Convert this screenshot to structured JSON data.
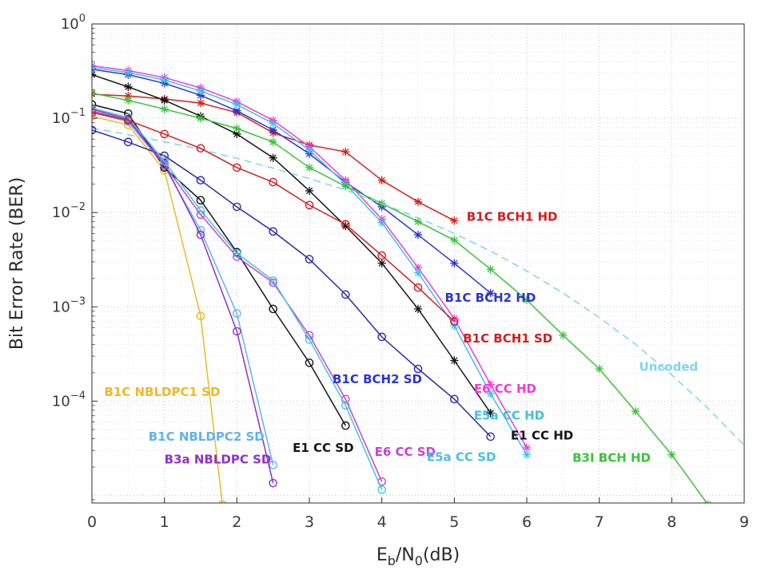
{
  "figure": {
    "background": "#ffffff",
    "axis_color": "#2f2f2f"
  },
  "chart_data": {
    "type": "line",
    "title": "",
    "ylabel": "Bit Error Rate (BER)",
    "xlabel_parts": [
      {
        "text": "E",
        "sub": false
      },
      {
        "text": "b",
        "sub": true
      },
      {
        "text": "/N",
        "sub": false
      },
      {
        "text": "0",
        "sub": true
      },
      {
        "text": "(dB)",
        "sub": false
      }
    ],
    "xlim": [
      0,
      9
    ],
    "x_ticks": [
      0,
      1,
      2,
      3,
      4,
      5,
      6,
      7,
      8,
      9
    ],
    "y_scale": "log",
    "ylog_top": 0,
    "ylog_bottom": -5.08,
    "y_tick_base": "10",
    "y_ticks": [
      {
        "exp": 0,
        "label": "0"
      },
      {
        "exp": -1,
        "label": "−1"
      },
      {
        "exp": -2,
        "label": "−2"
      },
      {
        "exp": -3,
        "label": "−3"
      },
      {
        "exp": -4,
        "label": "−4"
      }
    ],
    "grid": {
      "major": true,
      "minor": true,
      "style": "dotted"
    },
    "legend": "none (inline text annotations)",
    "series": [
      {
        "id": "b1c-bch1-hd",
        "name": "B1C BCH1 HD",
        "color": "#d21f1f",
        "marker": "asterisk",
        "dash": false,
        "x": [
          0,
          0.5,
          1,
          1.5,
          2,
          2.5,
          3,
          3.5,
          4,
          4.5,
          5
        ],
        "y": [
          0.18,
          0.172,
          0.16,
          0.145,
          0.115,
          0.07,
          0.052,
          0.044,
          0.022,
          0.013,
          0.0082
        ]
      },
      {
        "id": "b1c-bch2-hd",
        "name": "B1C BCH2 HD",
        "color": "#2b35d0",
        "marker": "asterisk",
        "dash": false,
        "x": [
          0,
          0.5,
          1,
          1.5,
          2,
          2.5,
          3,
          3.5,
          4,
          4.5,
          5,
          5.5
        ],
        "y": [
          0.33,
          0.29,
          0.235,
          0.175,
          0.12,
          0.075,
          0.042,
          0.021,
          0.0115,
          0.0058,
          0.0029,
          0.0014
        ]
      },
      {
        "id": "e6-cc-hd",
        "name": "E6 CC HD",
        "color": "#ef3cd8",
        "marker": "asterisk",
        "dash": false,
        "x": [
          0,
          0.5,
          1,
          1.5,
          2,
          2.5,
          3,
          3.5,
          4,
          4.5,
          5,
          5.5,
          6
        ],
        "y": [
          0.36,
          0.32,
          0.27,
          0.21,
          0.15,
          0.095,
          0.05,
          0.022,
          0.0085,
          0.0026,
          0.00075,
          0.00015,
          3.2e-05
        ]
      },
      {
        "id": "e5a-cc-hd",
        "name": "E5a CC HD",
        "color": "#3fc1e3",
        "marker": "asterisk",
        "dash": false,
        "x": [
          0,
          0.5,
          1,
          1.5,
          2,
          2.5,
          3,
          3.5,
          4,
          4.5,
          5,
          5.5,
          6
        ],
        "y": [
          0.345,
          0.305,
          0.255,
          0.195,
          0.14,
          0.088,
          0.046,
          0.02,
          0.0078,
          0.0023,
          0.00063,
          0.00012,
          2.7e-05
        ]
      },
      {
        "id": "e1-cc-hd",
        "name": "E1 CC HD",
        "color": "#141414",
        "marker": "asterisk",
        "dash": false,
        "x": [
          0,
          0.5,
          1,
          1.5,
          2,
          2.5,
          3,
          3.5,
          4,
          4.5,
          5,
          5.5
        ],
        "y": [
          0.29,
          0.215,
          0.155,
          0.105,
          0.068,
          0.038,
          0.017,
          0.0072,
          0.0029,
          0.00095,
          0.00027,
          7.5e-05
        ]
      },
      {
        "id": "b3i-bch-hd",
        "name": "B3I BCH HD",
        "color": "#3cc23c",
        "marker": "asterisk",
        "dash": false,
        "x": [
          0,
          0.5,
          1,
          1.5,
          2,
          2.5,
          3,
          3.5,
          4,
          4.5,
          5,
          5.5,
          6,
          6.5,
          7,
          7.5,
          8,
          8.5
        ],
        "y": [
          0.185,
          0.155,
          0.125,
          0.1,
          0.078,
          0.056,
          0.03,
          0.019,
          0.0125,
          0.008,
          0.0051,
          0.0025,
          0.00118,
          0.0005,
          0.00022,
          7.8e-05,
          2.7e-05,
          8e-06
        ]
      },
      {
        "id": "uncoded",
        "name": "Uncoded",
        "color": "#7fd4f2",
        "marker": null,
        "dash": true,
        "x": [
          0,
          0.5,
          1,
          1.5,
          2,
          2.5,
          3,
          3.5,
          4,
          4.5,
          5,
          5.5,
          6,
          6.5,
          7,
          7.5,
          8,
          8.5,
          9
        ],
        "y": [
          0.0786,
          0.0669,
          0.0563,
          0.0468,
          0.0375,
          0.0296,
          0.0229,
          0.0173,
          0.0125,
          0.0088,
          0.006,
          0.0039,
          0.0024,
          0.0014,
          0.00077,
          0.0004,
          0.00019,
          8.4e-05,
          3.4e-05
        ]
      },
      {
        "id": "b1c-nbldpc1-sd",
        "name": "B1C NBLDPC1 SD",
        "color": "#ecb92a",
        "marker": "circle",
        "dash": false,
        "x": [
          0,
          0.5,
          1,
          1.5,
          1.8
        ],
        "y": [
          0.105,
          0.085,
          0.028,
          0.0008,
          8e-06
        ]
      },
      {
        "id": "b1c-nbldpc2-sd",
        "name": "B1C NBLDPC2 SD",
        "color": "#61b2ef",
        "marker": "circle",
        "dash": false,
        "x": [
          0,
          0.5,
          1,
          1.5,
          2,
          2.5
        ],
        "y": [
          0.115,
          0.092,
          0.031,
          0.0065,
          0.00085,
          2.1e-05
        ]
      },
      {
        "id": "b3a-nbldpc-sd",
        "name": "B3a NBLDPC SD",
        "color": "#8d32c8",
        "marker": "circle",
        "dash": false,
        "x": [
          0,
          0.5,
          1,
          1.5,
          2,
          2.5
        ],
        "y": [
          0.125,
          0.098,
          0.033,
          0.0058,
          0.00055,
          1.35e-05
        ]
      },
      {
        "id": "e1-cc-sd",
        "name": "E1 CC SD",
        "color": "#141414",
        "marker": "circle",
        "dash": false,
        "x": [
          0,
          0.5,
          1,
          1.5,
          2,
          2.5,
          3,
          3.5
        ],
        "y": [
          0.14,
          0.112,
          0.03,
          0.0135,
          0.0038,
          0.00095,
          0.000255,
          5.5e-05
        ]
      },
      {
        "id": "b1c-bch2-sd",
        "name": "B1C BCH2 SD",
        "color": "#2a2aa8",
        "marker": "circle",
        "dash": false,
        "x": [
          0,
          0.5,
          1,
          1.5,
          2,
          2.5,
          3,
          3.5,
          4,
          4.5,
          5,
          5.5
        ],
        "y": [
          0.075,
          0.056,
          0.04,
          0.022,
          0.0115,
          0.0063,
          0.0032,
          0.00135,
          0.00048,
          0.00022,
          0.000105,
          4.2e-05
        ]
      },
      {
        "id": "e6-cc-sd",
        "name": "E6 CC SD",
        "color": "#c544cf",
        "marker": "circle",
        "dash": false,
        "x": [
          0,
          0.5,
          1,
          1.5,
          2,
          2.5,
          3,
          3.5,
          4
        ],
        "y": [
          0.12,
          0.095,
          0.032,
          0.0095,
          0.0034,
          0.0018,
          0.0005,
          0.000105,
          1.4e-05
        ]
      },
      {
        "id": "e5a-cc-sd",
        "name": "E5a CC SD",
        "color": "#46c2e0",
        "marker": "circle",
        "dash": false,
        "x": [
          0,
          0.5,
          1,
          1.5,
          2,
          2.5,
          3,
          3.5,
          4
        ],
        "y": [
          0.128,
          0.102,
          0.035,
          0.0105,
          0.0037,
          0.0019,
          0.00045,
          9e-05,
          1.15e-05
        ]
      },
      {
        "id": "b1c-bch1-sd",
        "name": "B1C BCH1 SD",
        "color": "#d21f1f",
        "marker": "circle",
        "dash": false,
        "x": [
          0,
          0.5,
          1,
          1.5,
          2,
          2.5,
          3,
          3.5,
          4,
          4.5,
          5
        ],
        "y": [
          0.115,
          0.095,
          0.068,
          0.048,
          0.03,
          0.021,
          0.012,
          0.0075,
          0.0035,
          0.0016,
          0.0007
        ]
      }
    ],
    "annotations": [
      {
        "text": "B1C BCH1 HD",
        "x": 5.17,
        "y": 0.009,
        "color": "#d21f1f"
      },
      {
        "text": "B1C BCH2 HD",
        "x": 4.87,
        "y": 0.00125,
        "color": "#2b35d0"
      },
      {
        "text": "B1C BCH1 SD",
        "x": 5.12,
        "y": 0.00046,
        "color": "#d21f1f"
      },
      {
        "text": "Uncoded",
        "x": 7.55,
        "y": 0.00023,
        "color": "#7fd4f2"
      },
      {
        "text": "E6 CC HD",
        "x": 5.27,
        "y": 0.000135,
        "color": "#ef3cd8"
      },
      {
        "text": "E5a CC HD",
        "x": 5.27,
        "y": 7e-05,
        "color": "#3fc1e3"
      },
      {
        "text": "E1 CC HD",
        "x": 5.78,
        "y": 4.3e-05,
        "color": "#141414"
      },
      {
        "text": "B3I BCH HD",
        "x": 6.63,
        "y": 2.5e-05,
        "color": "#3cc23c"
      },
      {
        "text": "B1C NBLDPC1 SD",
        "x": 0.17,
        "y": 0.000125,
        "color": "#ecb92a"
      },
      {
        "text": "B1C NBLDPC2 SD",
        "x": 0.78,
        "y": 4.2e-05,
        "color": "#61b2ef"
      },
      {
        "text": "B3a NBLDPC SD",
        "x": 1.0,
        "y": 2.4e-05,
        "color": "#8d32c8"
      },
      {
        "text": "E1 CC SD",
        "x": 2.77,
        "y": 3.2e-05,
        "color": "#141414"
      },
      {
        "text": "B1C BCH2 SD",
        "x": 3.32,
        "y": 0.00017,
        "color": "#2b35d0"
      },
      {
        "text": "E6 CC SD",
        "x": 3.9,
        "y": 2.9e-05,
        "color": "#c544cf"
      },
      {
        "text": "E5a CC SD",
        "x": 4.62,
        "y": 2.55e-05,
        "color": "#46c2e0"
      }
    ]
  }
}
